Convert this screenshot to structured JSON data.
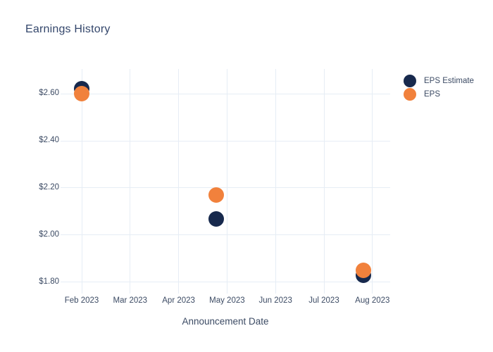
{
  "window": {
    "background": "#FFFFFF"
  },
  "title": {
    "text": "Earnings History"
  },
  "colors": {
    "eps_estimate": "#17294D",
    "eps": "#F1813C",
    "grid": "#E6EDF5",
    "title_text": "#33466B",
    "axis_text": "#3C4B64",
    "background": "#FFFFFF"
  },
  "legend": {
    "items": [
      {
        "label": "EPS Estimate",
        "color": "#17294D"
      },
      {
        "label": "EPS",
        "color": "#F1813C"
      }
    ]
  },
  "chart_data": {
    "type": "scatter",
    "title": "Earnings History",
    "xlabel": "Announcement Date",
    "ylabel": "",
    "x_tick_labels": [
      "Feb 2023",
      "Mar 2023",
      "Apr 2023",
      "May 2023",
      "Jun 2023",
      "Jul 2023",
      "Aug 2023"
    ],
    "y_tick_labels": [
      "$2.60",
      "$2.40",
      "$2.20",
      "$2.00",
      "$1.80"
    ],
    "y_tick_values": [
      2.6,
      2.4,
      2.2,
      2.0,
      1.8
    ],
    "ylim": [
      1.75,
      2.7
    ],
    "grid": true,
    "legend_position": "right-outside-top",
    "x_note": "x values are month offsets from the Feb 2023 tick (0 = Feb 2023, 1 = Mar 2023, ...)",
    "series": [
      {
        "name": "EPS Estimate",
        "color": "#17294D",
        "points": [
          {
            "x_month": 0.0,
            "y": 2.62
          },
          {
            "x_month": 2.78,
            "y": 2.07
          },
          {
            "x_month": 5.82,
            "y": 1.83
          }
        ]
      },
      {
        "name": "EPS",
        "color": "#F1813C",
        "points": [
          {
            "x_month": 0.0,
            "y": 2.6
          },
          {
            "x_month": 2.78,
            "y": 2.17
          },
          {
            "x_month": 5.82,
            "y": 1.85
          }
        ]
      }
    ]
  }
}
